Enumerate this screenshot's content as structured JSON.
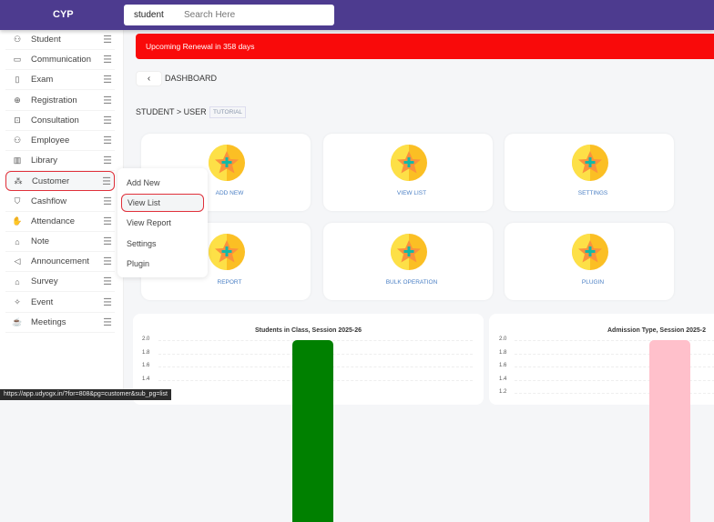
{
  "header": {
    "logo": "CYP",
    "search_scope": "student",
    "search_placeholder": "Search Here"
  },
  "sidebar": {
    "items": [
      {
        "label": "Student",
        "icon": "user-icon"
      },
      {
        "label": "Communication",
        "icon": "message-icon"
      },
      {
        "label": "Exam",
        "icon": "clipboard-icon"
      },
      {
        "label": "Registration",
        "icon": "plus-circle-icon"
      },
      {
        "label": "Consultation",
        "icon": "briefcase-icon"
      },
      {
        "label": "Employee",
        "icon": "user-icon"
      },
      {
        "label": "Library",
        "icon": "books-icon"
      },
      {
        "label": "Customer",
        "icon": "network-icon",
        "active": true
      },
      {
        "label": "Cashflow",
        "icon": "shield-icon"
      },
      {
        "label": "Attendance",
        "icon": "hand-icon"
      },
      {
        "label": "Note",
        "icon": "note-icon"
      },
      {
        "label": "Announcement",
        "icon": "megaphone-icon"
      },
      {
        "label": "Survey",
        "icon": "survey-icon"
      },
      {
        "label": "Event",
        "icon": "event-icon"
      },
      {
        "label": "Meetings",
        "icon": "coffee-icon"
      }
    ]
  },
  "flyout": {
    "items": [
      "Add New",
      "View List",
      "View Report",
      "Settings",
      "Plugin"
    ],
    "active": "View List"
  },
  "banner": {
    "text": "Upcoming Renewal in 358 days",
    "color": "#f90a0a"
  },
  "page": {
    "title": "DASHBOARD",
    "breadcrumb": "STUDENT > USER",
    "tutorial": "TUTORIAL"
  },
  "cards": [
    "ADD NEW",
    "VIEW LIST",
    "SETTINGS",
    "REPORT",
    "BULK OPERATION",
    "PLUGIN"
  ],
  "chart_data": [
    {
      "type": "bar",
      "title": "Students in Class, Session 2025-26",
      "yticks": [
        "2.0",
        "1.8",
        "1.6",
        "1.4"
      ],
      "values": [
        2
      ],
      "color": "#008000"
    },
    {
      "type": "bar",
      "title": "Admission Type, Session 2025-2",
      "yticks": [
        "2.0",
        "1.8",
        "1.6",
        "1.4",
        "1.2"
      ],
      "values": [
        2
      ],
      "color": "#ffc0cb"
    }
  ],
  "status_url": "https://app.udyogx.in/?for=808&pg=customer&sub_pg=list"
}
